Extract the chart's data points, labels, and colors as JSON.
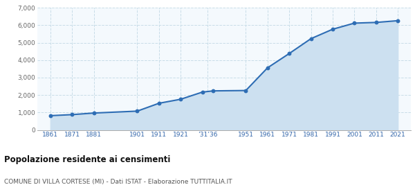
{
  "years": [
    1861,
    1871,
    1881,
    1901,
    1911,
    1921,
    1931,
    1936,
    1951,
    1961,
    1971,
    1981,
    1991,
    2001,
    2011,
    2021
  ],
  "population": [
    820,
    880,
    970,
    1080,
    1530,
    1760,
    2170,
    2240,
    2260,
    3560,
    4380,
    5230,
    5770,
    6120,
    6160,
    6260
  ],
  "line_color": "#2e6db4",
  "fill_color": "#cce0f0",
  "marker_color": "#2e6db4",
  "bg_color": "#ffffff",
  "plot_bg_color": "#f4f9fd",
  "grid_color": "#c8dde8",
  "title": "Popolazione residente ai censimenti",
  "subtitle": "COMUNE DI VILLA CORTESE (MI) - Dati ISTAT - Elaborazione TUTTITALIA.IT",
  "ylim": [
    0,
    7000
  ],
  "yticks": [
    0,
    1000,
    2000,
    3000,
    4000,
    5000,
    6000,
    7000
  ]
}
